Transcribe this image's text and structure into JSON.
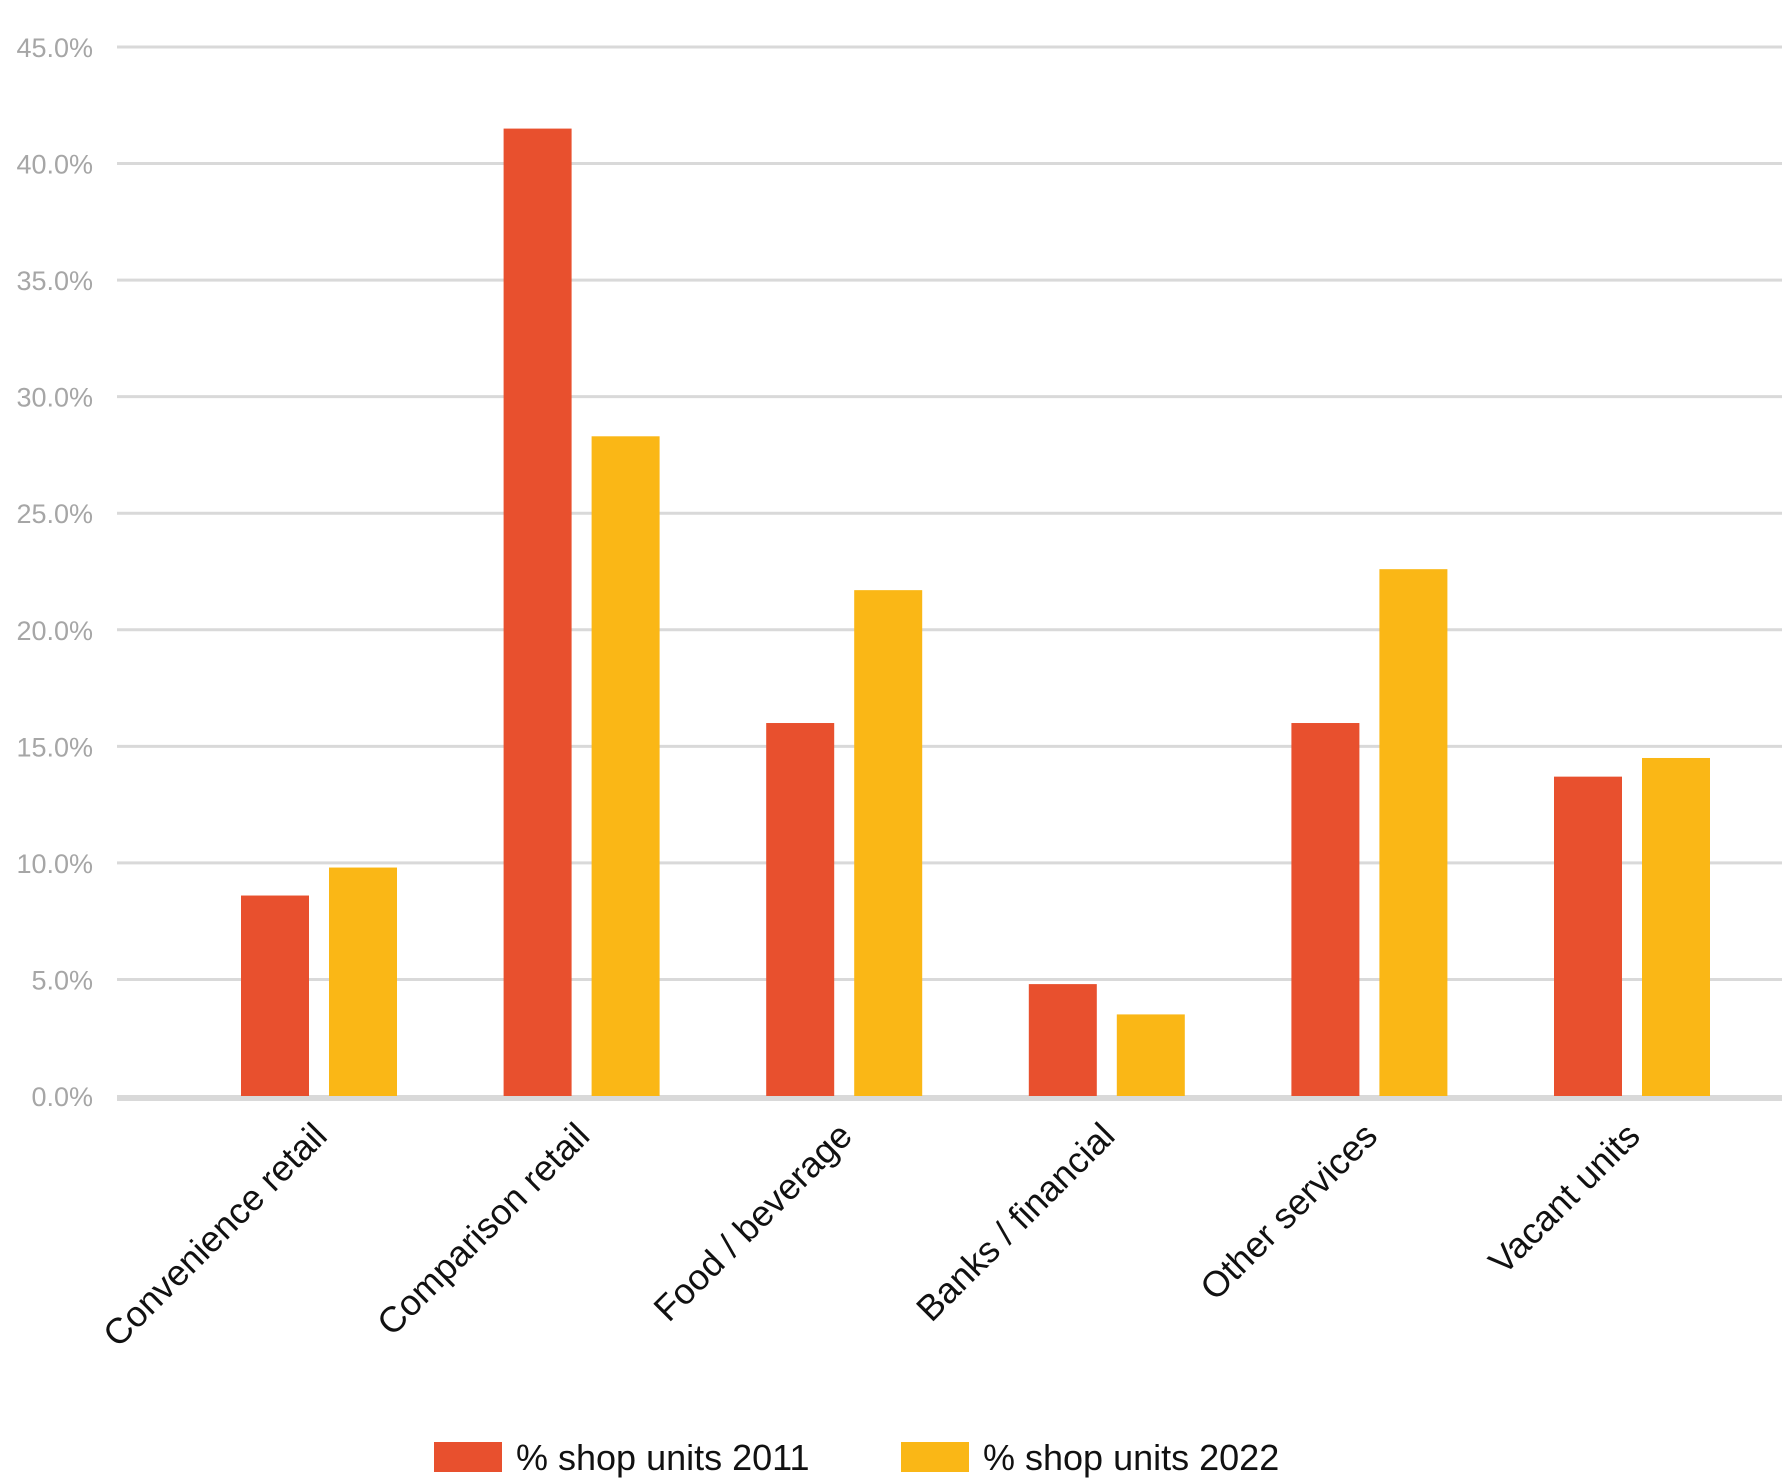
{
  "chart_data": {
    "type": "bar",
    "categories": [
      "Convenience retail",
      "Comparison retail",
      "Food / beverage",
      "Banks / financial",
      "Other services",
      "Vacant units"
    ],
    "series": [
      {
        "name": "% shop units 2011",
        "color": "#e8502e",
        "values": [
          8.6,
          41.5,
          16.0,
          4.8,
          16.0,
          13.7
        ]
      },
      {
        "name": "% shop units 2022",
        "color": "#fab716",
        "values": [
          9.8,
          28.3,
          21.7,
          3.5,
          22.6,
          14.5
        ]
      }
    ],
    "yticks": [
      "0.0%",
      "5.0%",
      "10.0%",
      "15.0%",
      "20.0%",
      "25.0%",
      "30.0%",
      "35.0%",
      "40.0%",
      "45.0%"
    ],
    "ylim": [
      0,
      45
    ],
    "grid": true,
    "legend_position": "bottom-center",
    "title": "",
    "xlabel": "",
    "ylabel": ""
  }
}
